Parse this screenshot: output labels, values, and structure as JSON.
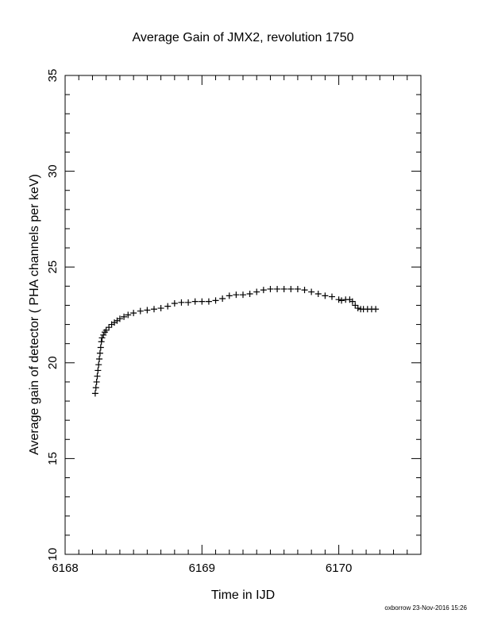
{
  "chart_data": {
    "type": "scatter",
    "title": "Average Gain of JMX2, revolution 1750",
    "xlabel": "Time in IJD",
    "ylabel": "Average gain of detector ( PHA channels per keV)",
    "xlim": [
      6168,
      6170.6
    ],
    "ylim": [
      10,
      35
    ],
    "x_ticks": [
      6168,
      6169,
      6170
    ],
    "y_ticks": [
      10,
      15,
      20,
      25,
      30,
      35
    ],
    "x_minor_step": 0.1,
    "y_minor_step": 1,
    "marker": "plus",
    "color": "#000000",
    "grid": false,
    "points": [
      [
        6168.22,
        18.4
      ],
      [
        6168.225,
        18.7
      ],
      [
        6168.23,
        19.0
      ],
      [
        6168.235,
        19.3
      ],
      [
        6168.24,
        19.6
      ],
      [
        6168.245,
        19.9
      ],
      [
        6168.25,
        20.2
      ],
      [
        6168.255,
        20.5
      ],
      [
        6168.26,
        20.8
      ],
      [
        6168.265,
        21.1
      ],
      [
        6168.27,
        21.3
      ],
      [
        6168.28,
        21.45
      ],
      [
        6168.29,
        21.6
      ],
      [
        6168.3,
        21.7
      ],
      [
        6168.32,
        21.85
      ],
      [
        6168.34,
        22.0
      ],
      [
        6168.36,
        22.1
      ],
      [
        6168.38,
        22.2
      ],
      [
        6168.4,
        22.3
      ],
      [
        6168.43,
        22.4
      ],
      [
        6168.46,
        22.5
      ],
      [
        6168.5,
        22.6
      ],
      [
        6168.55,
        22.7
      ],
      [
        6168.6,
        22.75
      ],
      [
        6168.65,
        22.8
      ],
      [
        6168.7,
        22.85
      ],
      [
        6168.75,
        22.95
      ],
      [
        6168.8,
        23.1
      ],
      [
        6168.85,
        23.15
      ],
      [
        6168.9,
        23.15
      ],
      [
        6168.95,
        23.2
      ],
      [
        6169.0,
        23.2
      ],
      [
        6169.05,
        23.2
      ],
      [
        6169.1,
        23.25
      ],
      [
        6169.15,
        23.35
      ],
      [
        6169.2,
        23.5
      ],
      [
        6169.25,
        23.55
      ],
      [
        6169.3,
        23.55
      ],
      [
        6169.35,
        23.6
      ],
      [
        6169.4,
        23.7
      ],
      [
        6169.45,
        23.8
      ],
      [
        6169.5,
        23.85
      ],
      [
        6169.55,
        23.85
      ],
      [
        6169.6,
        23.85
      ],
      [
        6169.65,
        23.85
      ],
      [
        6169.7,
        23.85
      ],
      [
        6169.75,
        23.8
      ],
      [
        6169.8,
        23.7
      ],
      [
        6169.85,
        23.6
      ],
      [
        6169.9,
        23.5
      ],
      [
        6169.95,
        23.45
      ],
      [
        6170.0,
        23.3
      ],
      [
        6170.02,
        23.25
      ],
      [
        6170.05,
        23.3
      ],
      [
        6170.08,
        23.3
      ],
      [
        6170.1,
        23.2
      ],
      [
        6170.12,
        23.0
      ],
      [
        6170.14,
        22.85
      ],
      [
        6170.16,
        22.8
      ],
      [
        6170.18,
        22.8
      ],
      [
        6170.21,
        22.8
      ],
      [
        6170.24,
        22.8
      ],
      [
        6170.27,
        22.8
      ]
    ]
  },
  "footer": "oxborrow 23-Nov-2016 15:26"
}
